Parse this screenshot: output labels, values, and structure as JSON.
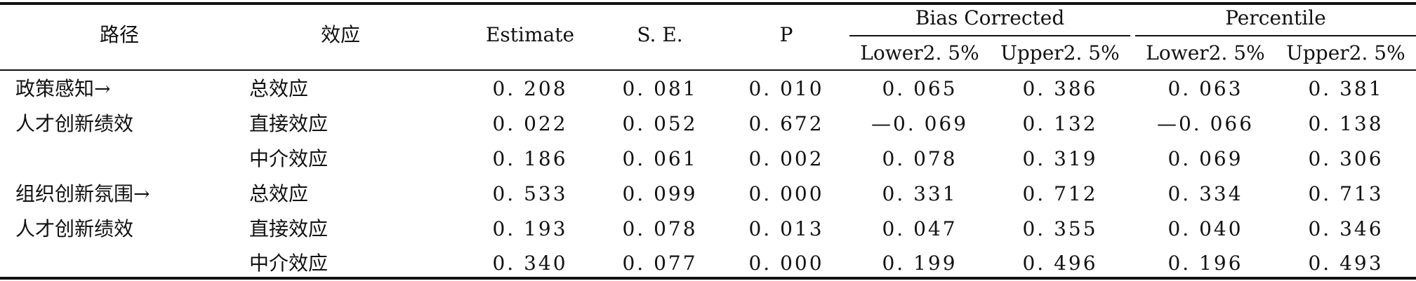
{
  "table": {
    "headers": {
      "path": "路径",
      "effect": "效应",
      "estimate": "Estimate",
      "se": "S. E.",
      "p": "P",
      "bias_corrected": "Bias Corrected",
      "percentile": "Percentile",
      "lower1": "Lower2. 5%",
      "upper1": "Upper2. 5%",
      "lower2": "Lower2. 5%",
      "upper2": "Upper2. 5%"
    },
    "rows": [
      {
        "path": "政策感知→",
        "effect": "总效应",
        "estimate": "0. 208",
        "se": "0. 081",
        "p": "0. 010",
        "bc_lower": "0. 065",
        "bc_upper": "0. 386",
        "pc_lower": "0. 063",
        "pc_upper": "0. 381"
      },
      {
        "path": "人才创新绩效",
        "effect": "直接效应",
        "estimate": "0. 022",
        "se": "0. 052",
        "p": "0. 672",
        "bc_lower": "—0. 069",
        "bc_upper": "0. 132",
        "pc_lower": "—0. 066",
        "pc_upper": "0. 138"
      },
      {
        "path": "",
        "effect": "中介效应",
        "estimate": "0. 186",
        "se": "0. 061",
        "p": "0. 002",
        "bc_lower": "0. 078",
        "bc_upper": "0. 319",
        "pc_lower": "0. 069",
        "pc_upper": "0. 306"
      },
      {
        "path": "组织创新氛围→",
        "effect": "总效应",
        "estimate": "0. 533",
        "se": "0. 099",
        "p": "0. 000",
        "bc_lower": "0. 331",
        "bc_upper": "0. 712",
        "pc_lower": "0. 334",
        "pc_upper": "0. 713"
      },
      {
        "path": "人才创新绩效",
        "effect": "直接效应",
        "estimate": "0. 193",
        "se": "0. 078",
        "p": "0. 013",
        "bc_lower": "0. 047",
        "bc_upper": "0. 355",
        "pc_lower": "0. 040",
        "pc_upper": "0. 346"
      },
      {
        "path": "",
        "effect": "中介效应",
        "estimate": "0. 340",
        "se": "0. 077",
        "p": "0. 000",
        "bc_lower": "0. 199",
        "bc_upper": "0. 496",
        "pc_lower": "0. 196",
        "pc_upper": "0. 493"
      }
    ]
  }
}
